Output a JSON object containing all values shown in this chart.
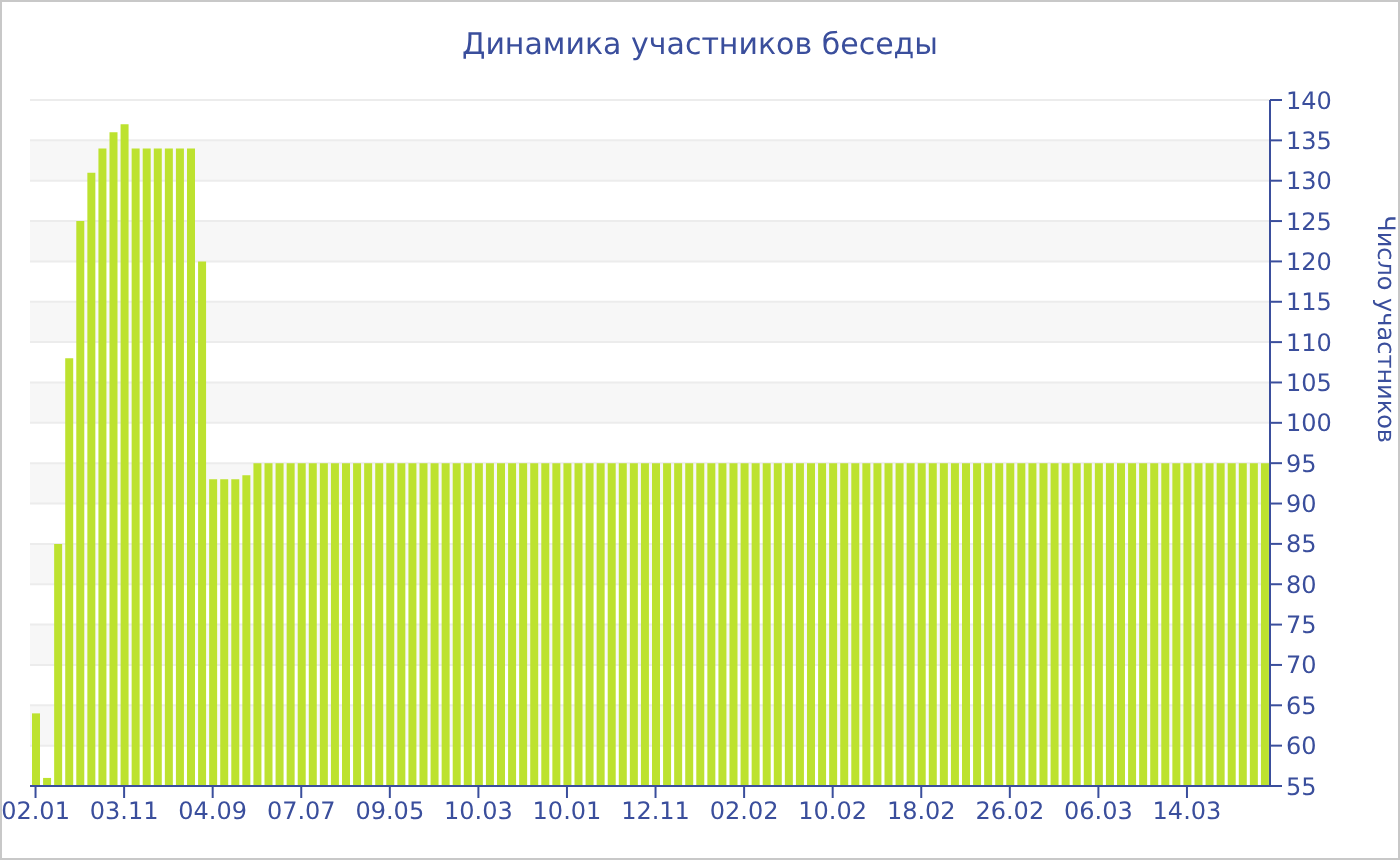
{
  "chart_data": {
    "type": "bar",
    "title": "Динамика участников беседы",
    "ylabel": "Число участников",
    "categories": [
      "02.01",
      null,
      null,
      null,
      null,
      null,
      null,
      null,
      "03.11",
      null,
      null,
      null,
      null,
      null,
      null,
      null,
      "04.09",
      null,
      null,
      null,
      null,
      null,
      null,
      null,
      "07.07",
      null,
      null,
      null,
      null,
      null,
      null,
      null,
      "09.05",
      null,
      null,
      null,
      null,
      null,
      null,
      null,
      "10.03",
      null,
      null,
      null,
      null,
      null,
      null,
      null,
      "10.01",
      null,
      null,
      null,
      null,
      null,
      null,
      null,
      "12.11",
      null,
      null,
      null,
      null,
      null,
      null,
      null,
      "02.02",
      null,
      null,
      null,
      null,
      null,
      null,
      null,
      "10.02",
      null,
      null,
      null,
      null,
      null,
      null,
      null,
      "18.02",
      null,
      null,
      null,
      null,
      null,
      null,
      null,
      "26.02",
      null,
      null,
      null,
      null,
      null,
      null,
      null,
      "06.03",
      null,
      null,
      null,
      null,
      null,
      null,
      null,
      "14.03",
      null,
      null,
      null,
      null,
      null,
      null,
      null
    ],
    "values": [
      64,
      56,
      85,
      108,
      125,
      131,
      134,
      136,
      137,
      134,
      134,
      134,
      134,
      134,
      134,
      120,
      93,
      93,
      93,
      93.5,
      95,
      95,
      95,
      95,
      95,
      95,
      95,
      95,
      95,
      95,
      95,
      95,
      95,
      95,
      95,
      95,
      95,
      95,
      95,
      95,
      95,
      95,
      95,
      95,
      95,
      95,
      95,
      95,
      95,
      95,
      95,
      95,
      95,
      95,
      95,
      95,
      95,
      95,
      95,
      95,
      95,
      95,
      95,
      95,
      95,
      95,
      95,
      95,
      95,
      95,
      95,
      95,
      95,
      95,
      95,
      95,
      95,
      95,
      95,
      95,
      95,
      95,
      95,
      95,
      95,
      95,
      95,
      95,
      95,
      95,
      95,
      95,
      95,
      95,
      95,
      95,
      95,
      95,
      95,
      95,
      95,
      95,
      95,
      95,
      95,
      95,
      95,
      95,
      95,
      95,
      95,
      95
    ],
    "color": "#bde22f",
    "ylim": [
      55,
      140
    ],
    "yticks": [
      55,
      60,
      65,
      70,
      75,
      80,
      85,
      90,
      95,
      100,
      105,
      110,
      115,
      120,
      125,
      130,
      135,
      140
    ],
    "grid": "y"
  }
}
